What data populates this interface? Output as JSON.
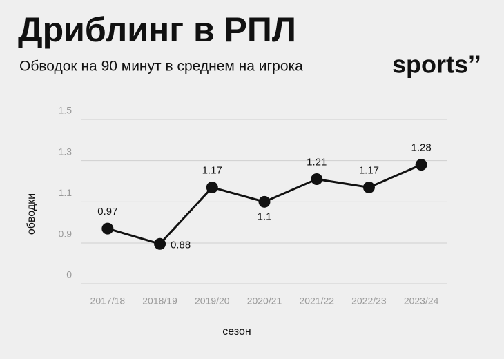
{
  "chart_data": {
    "type": "line",
    "title": "Дриблинг в РПЛ",
    "subtitle": "Обводок на 90 минут в среднем на игрока",
    "logo": "sports’’",
    "x_label": "сезон",
    "y_label": "обводки",
    "categories": [
      "2017/18",
      "2018/19",
      "2019/20",
      "2020/21",
      "2021/22",
      "2022/23",
      "2023/24"
    ],
    "values": [
      0.97,
      0.88,
      1.17,
      1.1,
      1.21,
      1.17,
      1.28
    ],
    "color": "#111111",
    "ylim": [
      0,
      1.5
    ],
    "yticks": [
      0,
      0.9,
      1.1,
      1.3,
      1.5
    ],
    "axis_break": [
      0,
      0.9
    ],
    "grid": true
  }
}
